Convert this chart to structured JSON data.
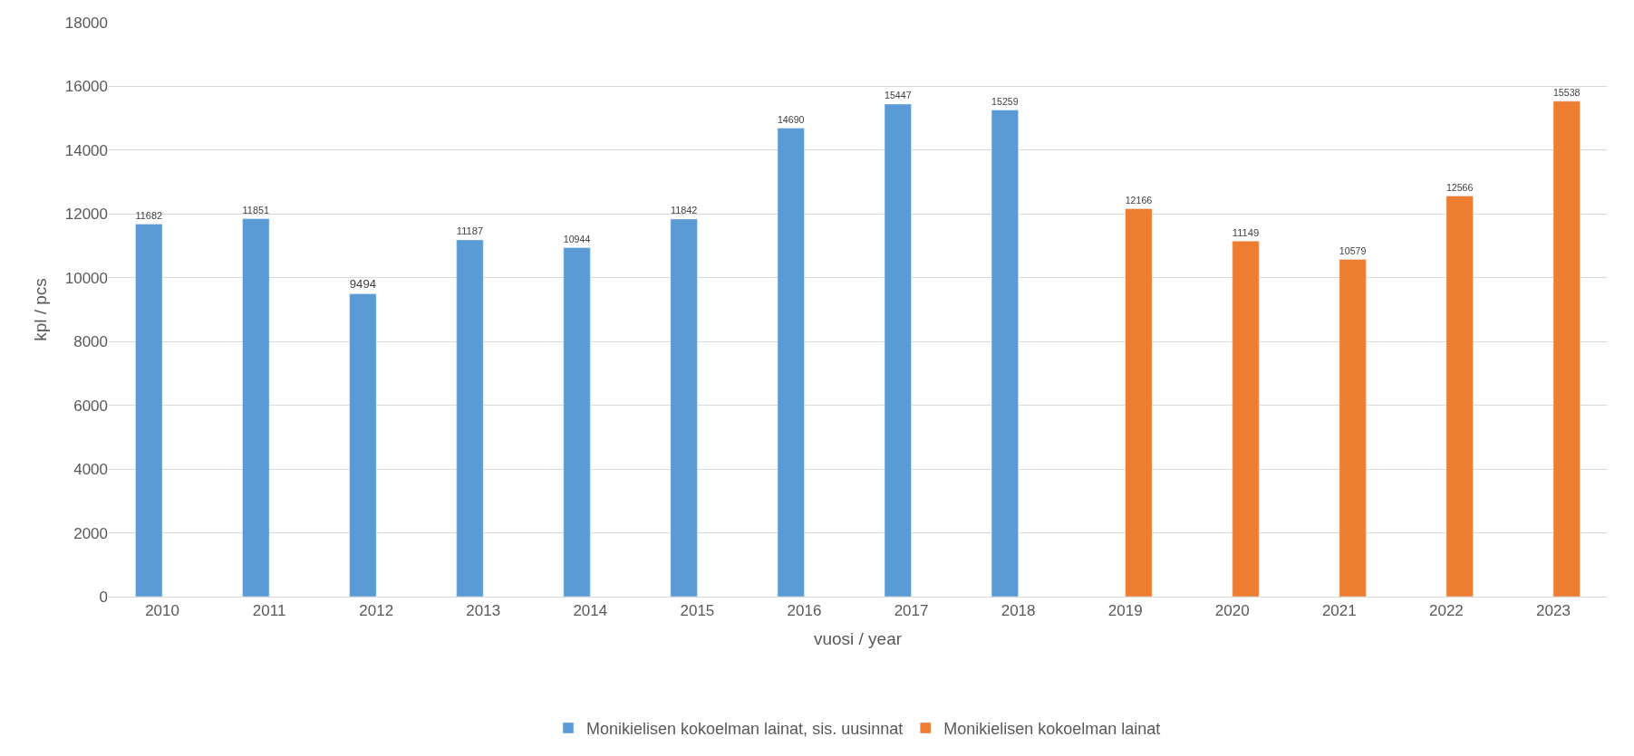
{
  "chart_data": {
    "type": "bar",
    "xlabel": "vuosi / year",
    "ylabel": "kpl / pcs",
    "categories": [
      "2010",
      "2011",
      "2012",
      "2013",
      "2014",
      "2015",
      "2016",
      "2017",
      "2018",
      "2019",
      "2020",
      "2021",
      "2022",
      "2023"
    ],
    "series": [
      {
        "name": "Monikielisen kokoelman lainat, sis. uusinnat",
        "color": "#5b9bd5",
        "values": [
          11682,
          11851,
          9494,
          11187,
          10944,
          11842,
          14690,
          15447,
          15259,
          null,
          null,
          null,
          null,
          null
        ]
      },
      {
        "name": "Monikielisen kokoelman lainat",
        "color": "#ed7d31",
        "values": [
          null,
          null,
          null,
          null,
          null,
          null,
          null,
          null,
          null,
          12166,
          11149,
          10579,
          12566,
          15538
        ]
      }
    ],
    "ylim": [
      0,
      18000
    ],
    "yticks": [
      0,
      2000,
      4000,
      6000,
      8000,
      10000,
      12000,
      14000,
      16000,
      18000
    ],
    "grid": "y",
    "legend": "bottom",
    "data_labels": true
  }
}
